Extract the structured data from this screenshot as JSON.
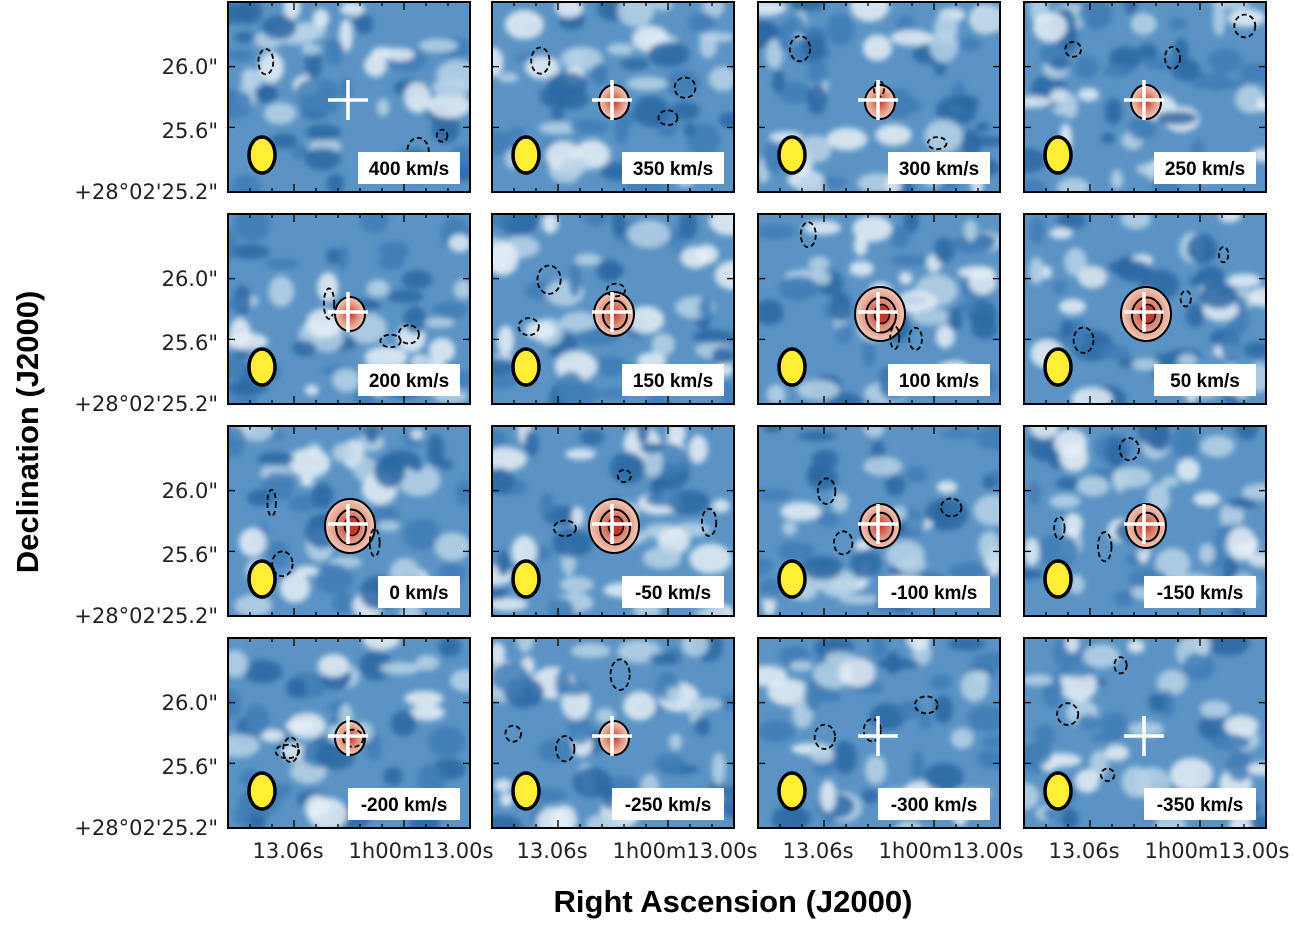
{
  "chart_data": {
    "type": "heatmap",
    "grid": {
      "rows": 4,
      "cols": 4
    },
    "xlabel": "Right Ascension (J2000)",
    "ylabel": "Declination (J2000)",
    "x_tick_labels": [
      "13.06s",
      "1h00m13.00s"
    ],
    "y_tick_labels": [
      "26.0\"",
      "25.6\"",
      "+28°02'25.2\""
    ],
    "colors": {
      "background_map": "#2f6fad",
      "emission_map": "#d87a66",
      "beam_fill": "#ffee33",
      "source_marker": "#ffffff",
      "contour": "#000000"
    },
    "markers": {
      "source": "white cross",
      "beam": "yellow ellipse",
      "contours": "solid positive, dashed negative"
    },
    "panels": [
      {
        "velocity_kms": 400,
        "label": "400 km/s",
        "emission": 0
      },
      {
        "velocity_kms": 350,
        "label": "350 km/s",
        "emission": 1
      },
      {
        "velocity_kms": 300,
        "label": "300 km/s",
        "emission": 1
      },
      {
        "velocity_kms": 250,
        "label": "250 km/s",
        "emission": 1
      },
      {
        "velocity_kms": 200,
        "label": "200 km/s",
        "emission": 1
      },
      {
        "velocity_kms": 150,
        "label": "150 km/s",
        "emission": 2
      },
      {
        "velocity_kms": 100,
        "label": "100 km/s",
        "emission": 3
      },
      {
        "velocity_kms": 50,
        "label": "50 km/s",
        "emission": 3
      },
      {
        "velocity_kms": 0,
        "label": "0 km/s",
        "emission": 3
      },
      {
        "velocity_kms": -50,
        "label": "-50 km/s",
        "emission": 3
      },
      {
        "velocity_kms": -100,
        "label": "-100 km/s",
        "emission": 2
      },
      {
        "velocity_kms": -150,
        "label": "-150 km/s",
        "emission": 2
      },
      {
        "velocity_kms": -200,
        "label": "-200 km/s",
        "emission": 1
      },
      {
        "velocity_kms": -250,
        "label": "-250 km/s",
        "emission": 1
      },
      {
        "velocity_kms": -300,
        "label": "-300 km/s",
        "emission": 0
      },
      {
        "velocity_kms": -350,
        "label": "-350 km/s",
        "emission": 0
      }
    ]
  }
}
